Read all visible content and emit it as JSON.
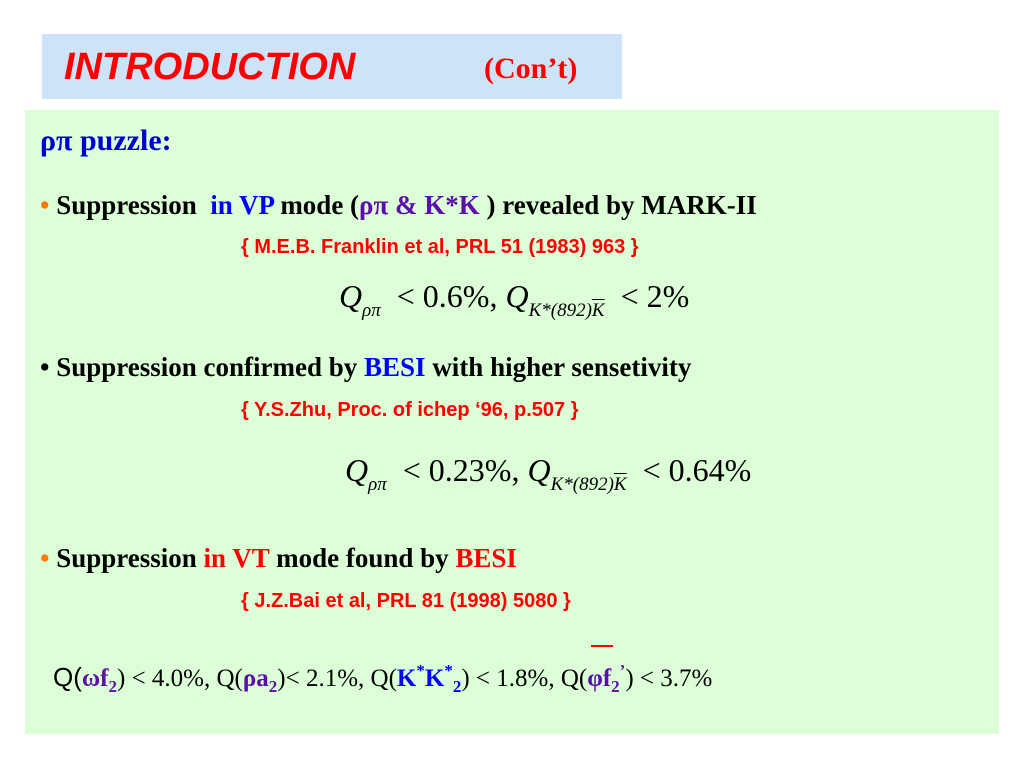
{
  "title": {
    "main": "INTRODUCTION",
    "sub": "(Con’t)"
  },
  "heading": "ρπ puzzle:",
  "bullet1": {
    "bullet": "•",
    "part1": "Suppression",
    "part2": "in VP",
    "part3": "mode (",
    "part4": "ρπ & K*K",
    "part5": ") revealed by MARK-II",
    "ref": "{ M.E.B. Franklin et al, PRL 51 (1983) 963 }"
  },
  "formula1": {
    "q1": "Q",
    "sub1": "ρπ",
    "rel1": "< 0.6%,",
    "q2": "Q",
    "sub2_left": "K*(892)",
    "sub2_bar": "K",
    "rel2": "< 2%"
  },
  "bullet2": {
    "bullet": "•",
    "part1": "Suppression confirmed by",
    "part2": "BESI",
    "part3": "with higher sensetivity",
    "ref": "{ Y.S.Zhu,  Proc. of  ichep ‘96, p.507 }"
  },
  "formula2": {
    "q1": "Q",
    "sub1": "ρπ",
    "rel1": "< 0.23%,",
    "q2": "Q",
    "sub2_left": "K*(892)",
    "sub2_bar": "K",
    "rel2": "< 0.64%"
  },
  "bullet3": {
    "bullet": "•",
    "part1": "Suppression",
    "part2": "in VT",
    "part3": "mode found by",
    "part4": "BESI",
    "ref": "{ J.Z.Bai et al, PRL 81 (1998) 5080 }"
  },
  "bottom": {
    "q1_prefix": "Q(",
    "q1_omega": "ω",
    "q1_f": "f",
    "q1_sub": "2",
    "q1_rest": ") < 4.0%,  Q(",
    "q2_rho": "ρ",
    "q2_a": "a",
    "q2_sub": "2",
    "q2_rest": ")< 2.1%,  Q(",
    "q3_k": "K",
    "q3_sup1": "*",
    "q3_kbar": "K",
    "q3_sup2": "*",
    "q3_sub": "2",
    "q3_rest": ") < 1.8%, Q(",
    "q4_phi": "φ",
    "q4_f": "f",
    "q4_sub": "2",
    "q4_sup": "’",
    "q4_rest": ") < 3.7%"
  },
  "colors": {
    "title_red": "#ff0000",
    "heading_blue": "#0000cc",
    "content_bg": "#dcffd8",
    "title_bg": "#cce3f8",
    "bullet_orange": "#ff7a00",
    "purple": "#5b0fa8"
  }
}
